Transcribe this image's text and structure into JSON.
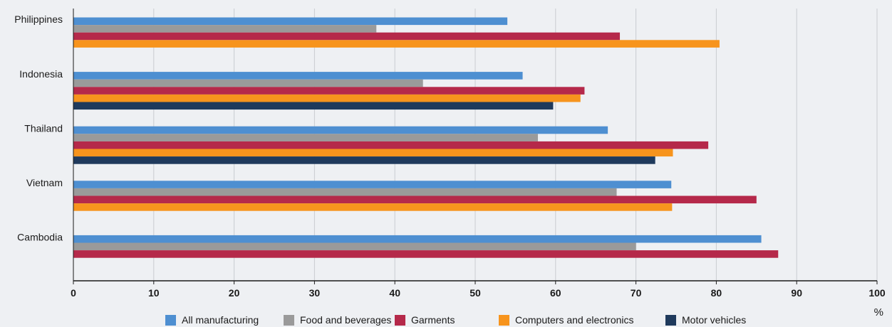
{
  "chart_data": {
    "type": "bar",
    "orientation": "horizontal",
    "categories": [
      "Philippines",
      "Indonesia",
      "Thailand",
      "Vietnam",
      "Cambodia"
    ],
    "series": [
      {
        "name": "All manufacturing",
        "color": "#4e8fd1",
        "values": [
          54.0,
          55.9,
          66.5,
          74.4,
          85.6
        ]
      },
      {
        "name": "Food and beverages",
        "color": "#9a9a9a",
        "values": [
          37.7,
          43.5,
          57.8,
          67.6,
          70.0
        ]
      },
      {
        "name": "Garments",
        "color": "#b5294a",
        "values": [
          68.0,
          63.6,
          79.0,
          85.0,
          87.7
        ]
      },
      {
        "name": "Computers and electronics",
        "color": "#f7941d",
        "values": [
          80.4,
          63.1,
          74.6,
          74.5,
          null
        ]
      },
      {
        "name": "Motor vehicles",
        "color": "#1f3a5c",
        "values": [
          null,
          59.7,
          72.4,
          null,
          null
        ]
      }
    ],
    "x_ticks": [
      "0",
      "10",
      "20",
      "30",
      "40",
      "50",
      "60",
      "70",
      "80",
      "90",
      "100"
    ],
    "xlim": [
      0,
      100
    ],
    "x_unit": "%",
    "grid": "vertical",
    "legend_position": "bottom"
  }
}
